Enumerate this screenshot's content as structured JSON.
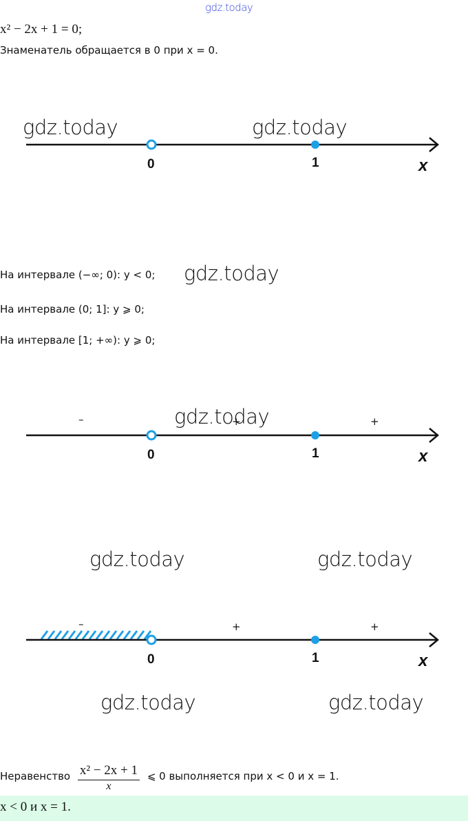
{
  "watermark_top": "gdz.today",
  "watermark": "gdz.today",
  "equation": "x² − 2x + 1 = 0;",
  "denominator_text": "Знаменатель обращается в 0 при x = 0.",
  "number_lines": [
    {
      "points": [
        {
          "label": "0",
          "type": "open"
        },
        {
          "label": "1",
          "type": "filled"
        }
      ],
      "axis": "x",
      "signs": []
    },
    {
      "points": [
        {
          "label": "0",
          "type": "open"
        },
        {
          "label": "1",
          "type": "filled"
        }
      ],
      "axis": "x",
      "signs": [
        "–",
        "+",
        "+"
      ]
    },
    {
      "points": [
        {
          "label": "0",
          "type": "open"
        },
        {
          "label": "1",
          "type": "filled"
        }
      ],
      "axis": "x",
      "signs": [
        "–",
        "+",
        "+"
      ],
      "shaded": "(−∞; 0)"
    }
  ],
  "intervals": [
    "На интервале (−∞; 0): y < 0;",
    "На интервале (0; 1]: y ⩾ 0;",
    "На интервале [1; +∞): y ⩾ 0;"
  ],
  "conclusion": {
    "prefix": "Неравенство",
    "numerator": "x² − 2x + 1",
    "denominator": "x",
    "suffix": "⩽ 0 выполняется при x < 0 и x = 1."
  },
  "answer": "x < 0 и x = 1.",
  "colors": {
    "point": "#1ea0e6",
    "answer_bg": "#ddfbe9",
    "watermark_top": "#3344dd"
  }
}
